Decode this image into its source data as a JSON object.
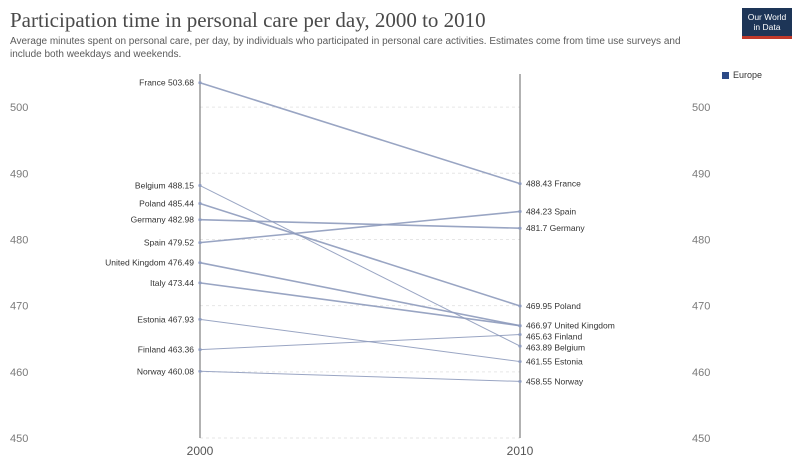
{
  "header": {
    "title": "Participation time in personal care per day, 2000 to 2010",
    "subtitle": "Average minutes spent on personal care, per day, by individuals who participated in personal care activities. Estimates come from time use surveys and include both weekdays and weekends.",
    "logo_line1": "Our World",
    "logo_line2": "in Data"
  },
  "legend": {
    "label": "Europe",
    "color": "#2c4a86"
  },
  "chart_data": {
    "type": "line",
    "subtype": "slope",
    "title": "Participation time in personal care per day, 2000 to 2010",
    "x": [
      "2000",
      "2010"
    ],
    "ylim": [
      450,
      505
    ],
    "yticks": [
      "450",
      "460",
      "470",
      "480",
      "490",
      "500"
    ],
    "grid": true,
    "legend_position": "top-right",
    "series": [
      {
        "name": "France",
        "values": [
          503.68,
          488.43
        ],
        "left_label": "France 503.68",
        "right_label": "488.43 France"
      },
      {
        "name": "Belgium",
        "values": [
          488.15,
          463.89
        ],
        "left_label": "Belgium 488.15",
        "right_label": "463.89 Belgium"
      },
      {
        "name": "Poland",
        "values": [
          485.44,
          469.95
        ],
        "left_label": "Poland 485.44",
        "right_label": "469.95 Poland"
      },
      {
        "name": "Germany",
        "values": [
          482.98,
          481.7
        ],
        "left_label": "Germany 482.98",
        "right_label": "481.7 Germany"
      },
      {
        "name": "Spain",
        "values": [
          479.52,
          484.23
        ],
        "left_label": "Spain 479.52",
        "right_label": "484.23 Spain"
      },
      {
        "name": "United Kingdom",
        "values": [
          476.49,
          466.97
        ],
        "left_label": "United Kingdom 476.49",
        "right_label": "466.97 United Kingdom"
      },
      {
        "name": "Italy",
        "values": [
          473.44,
          466.97
        ],
        "left_label": "Italy 473.44",
        "right_label": ""
      },
      {
        "name": "Estonia",
        "values": [
          467.93,
          461.55
        ],
        "left_label": "Estonia 467.93",
        "right_label": "461.55 Estonia"
      },
      {
        "name": "Finland",
        "values": [
          463.36,
          465.63
        ],
        "left_label": "Finland 463.36",
        "right_label": "465.63 Finland"
      },
      {
        "name": "Norway",
        "values": [
          460.08,
          458.55
        ],
        "left_label": "Norway 460.08",
        "right_label": "458.55 Norway"
      }
    ]
  }
}
